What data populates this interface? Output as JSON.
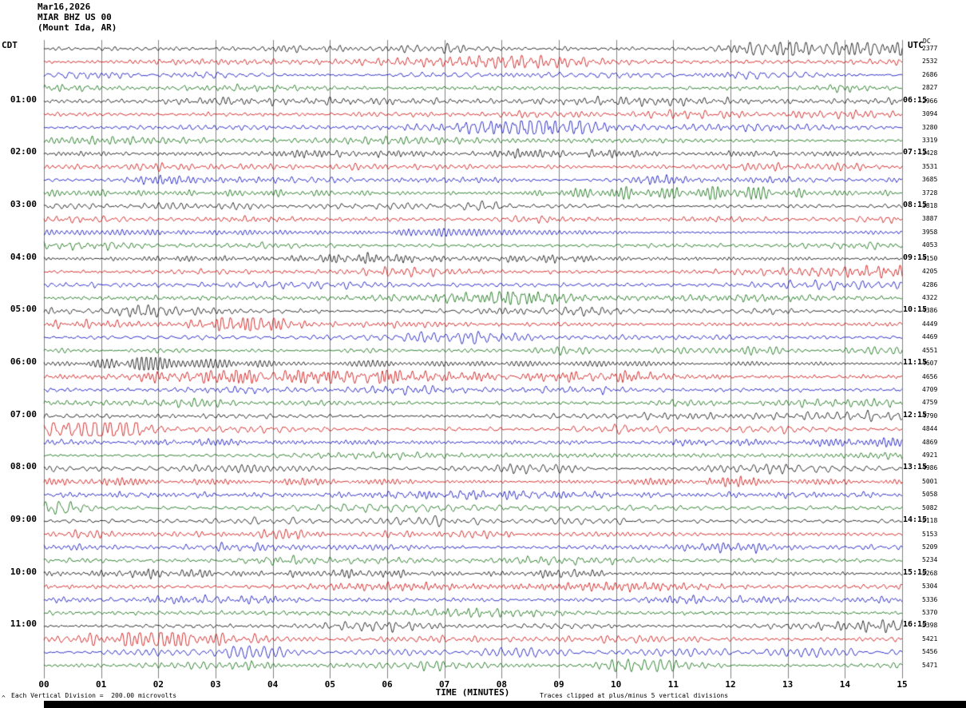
{
  "header": {
    "date": "Mar16,2026",
    "station_line": "MIAR BHZ US 00",
    "location_line": "(Mount Ida, AR)"
  },
  "gutters": {
    "left_header": "CDT",
    "right_header": "UTC",
    "dc_header": "DC"
  },
  "x_axis": {
    "title": "TIME (MINUTES)",
    "ticks": [
      "00",
      "01",
      "02",
      "03",
      "04",
      "05",
      "06",
      "07",
      "08",
      "09",
      "10",
      "11",
      "12",
      "13",
      "14",
      "15"
    ]
  },
  "footer": {
    "left": "Each Vertical Division =  200.00 microvolts",
    "right": "Traces clipped at plus/minus 5 vertical divisions",
    "corner_mark": "^"
  },
  "colors": {
    "black": "#000000",
    "red": "#cc0000",
    "blue": "#0000bb",
    "green": "#006600",
    "grid": "#808080",
    "bar": "#000000"
  },
  "chart_data": {
    "type": "line",
    "variant": "helicorder seismogram (multi-row continuous waveform)",
    "station": "MIAR BHZ US 00",
    "station_location": "Mount Ida, AR",
    "date": "Mar16,2026",
    "left_time_zone": "CDT",
    "right_time_zone": "UTC",
    "minutes_per_row": 15,
    "x_range_minutes": [
      0,
      15
    ],
    "row_colors_cycle": [
      "black",
      "red",
      "blue",
      "green"
    ],
    "vertical_division_microvolts": 200.0,
    "clip_divisions": 5,
    "note": "Individual waveform sample values are not recoverable from the raster; traces are background microseism-like noise, synthesized deterministically for display.",
    "rows": [
      {
        "local": "",
        "utc": "",
        "dc": 2377,
        "color": "black"
      },
      {
        "local": "",
        "utc": "",
        "dc": 2532,
        "color": "red"
      },
      {
        "local": "",
        "utc": "",
        "dc": 2686,
        "color": "blue"
      },
      {
        "local": "",
        "utc": "",
        "dc": 2827,
        "color": "green"
      },
      {
        "local": "01:00",
        "utc": "06:15",
        "dc": 2966,
        "color": "black"
      },
      {
        "local": "",
        "utc": "",
        "dc": 3094,
        "color": "red"
      },
      {
        "local": "",
        "utc": "",
        "dc": 3280,
        "color": "blue"
      },
      {
        "local": "",
        "utc": "",
        "dc": 3319,
        "color": "green"
      },
      {
        "local": "02:00",
        "utc": "07:15",
        "dc": 3428,
        "color": "black"
      },
      {
        "local": "",
        "utc": "",
        "dc": 3531,
        "color": "red"
      },
      {
        "local": "",
        "utc": "",
        "dc": 3685,
        "color": "blue"
      },
      {
        "local": "",
        "utc": "",
        "dc": 3728,
        "color": "green"
      },
      {
        "local": "03:00",
        "utc": "08:15",
        "dc": 3818,
        "color": "black"
      },
      {
        "local": "",
        "utc": "",
        "dc": 3887,
        "color": "red"
      },
      {
        "local": "",
        "utc": "",
        "dc": 3958,
        "color": "blue"
      },
      {
        "local": "",
        "utc": "",
        "dc": 4053,
        "color": "green"
      },
      {
        "local": "04:00",
        "utc": "09:15",
        "dc": 4150,
        "color": "black"
      },
      {
        "local": "",
        "utc": "",
        "dc": 4205,
        "color": "red"
      },
      {
        "local": "",
        "utc": "",
        "dc": 4286,
        "color": "blue"
      },
      {
        "local": "",
        "utc": "",
        "dc": 4322,
        "color": "green"
      },
      {
        "local": "05:00",
        "utc": "10:15",
        "dc": 4386,
        "color": "black"
      },
      {
        "local": "",
        "utc": "",
        "dc": 4449,
        "color": "red"
      },
      {
        "local": "",
        "utc": "",
        "dc": 4469,
        "color": "blue"
      },
      {
        "local": "",
        "utc": "",
        "dc": 4551,
        "color": "green"
      },
      {
        "local": "06:00",
        "utc": "11:15",
        "dc": 4607,
        "color": "black"
      },
      {
        "local": "",
        "utc": "",
        "dc": 4656,
        "color": "red"
      },
      {
        "local": "",
        "utc": "",
        "dc": 4709,
        "color": "blue"
      },
      {
        "local": "",
        "utc": "",
        "dc": 4759,
        "color": "green"
      },
      {
        "local": "07:00",
        "utc": "12:15",
        "dc": 4790,
        "color": "black"
      },
      {
        "local": "",
        "utc": "",
        "dc": 4844,
        "color": "red"
      },
      {
        "local": "",
        "utc": "",
        "dc": 4869,
        "color": "blue"
      },
      {
        "local": "",
        "utc": "",
        "dc": 4921,
        "color": "green"
      },
      {
        "local": "08:00",
        "utc": "13:15",
        "dc": 4986,
        "color": "black"
      },
      {
        "local": "",
        "utc": "",
        "dc": 5001,
        "color": "red"
      },
      {
        "local": "",
        "utc": "",
        "dc": 5058,
        "color": "blue"
      },
      {
        "local": "",
        "utc": "",
        "dc": 5082,
        "color": "green"
      },
      {
        "local": "09:00",
        "utc": "14:15",
        "dc": 5118,
        "color": "black"
      },
      {
        "local": "",
        "utc": "",
        "dc": 5153,
        "color": "red"
      },
      {
        "local": "",
        "utc": "",
        "dc": 5209,
        "color": "blue"
      },
      {
        "local": "",
        "utc": "",
        "dc": 5234,
        "color": "green"
      },
      {
        "local": "10:00",
        "utc": "15:15",
        "dc": 5268,
        "color": "black"
      },
      {
        "local": "",
        "utc": "",
        "dc": 5304,
        "color": "red"
      },
      {
        "local": "",
        "utc": "",
        "dc": 5336,
        "color": "blue"
      },
      {
        "local": "",
        "utc": "",
        "dc": 5370,
        "color": "green"
      },
      {
        "local": "11:00",
        "utc": "16:15",
        "dc": 5398,
        "color": "black"
      },
      {
        "local": "",
        "utc": "",
        "dc": 5421,
        "color": "red"
      },
      {
        "local": "",
        "utc": "",
        "dc": 5456,
        "color": "blue"
      },
      {
        "local": "",
        "utc": "",
        "dc": 5471,
        "color": "green"
      }
    ]
  }
}
